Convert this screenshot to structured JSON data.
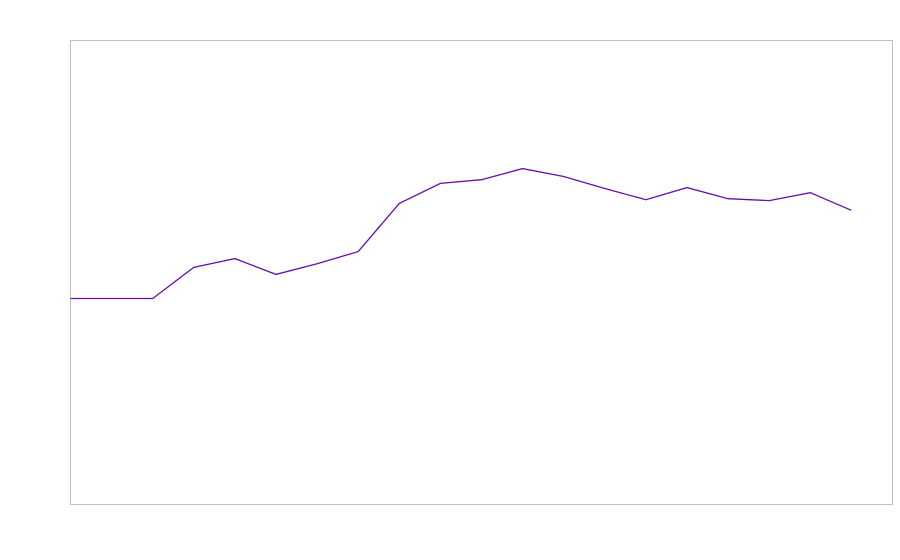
{
  "chart_data": {
    "type": "line",
    "title": "",
    "xlabel": "",
    "ylabel": "",
    "x": [
      0,
      1,
      2,
      3,
      4,
      5,
      6,
      7,
      8,
      9,
      10,
      11,
      12,
      13,
      14,
      15,
      16,
      17,
      18,
      19
    ],
    "series": [
      {
        "values": [
          0.444,
          0.444,
          0.444,
          0.511,
          0.53,
          0.496,
          0.519,
          0.545,
          0.649,
          0.692,
          0.7,
          0.724,
          0.707,
          0.681,
          0.657,
          0.683,
          0.659,
          0.655,
          0.672,
          0.634
        ],
        "color": "#6a0dad"
      }
    ],
    "xlim": [
      0,
      20
    ],
    "ylim": [
      0,
      1
    ],
    "grid": false,
    "frame_color": "#c0c0c0"
  }
}
